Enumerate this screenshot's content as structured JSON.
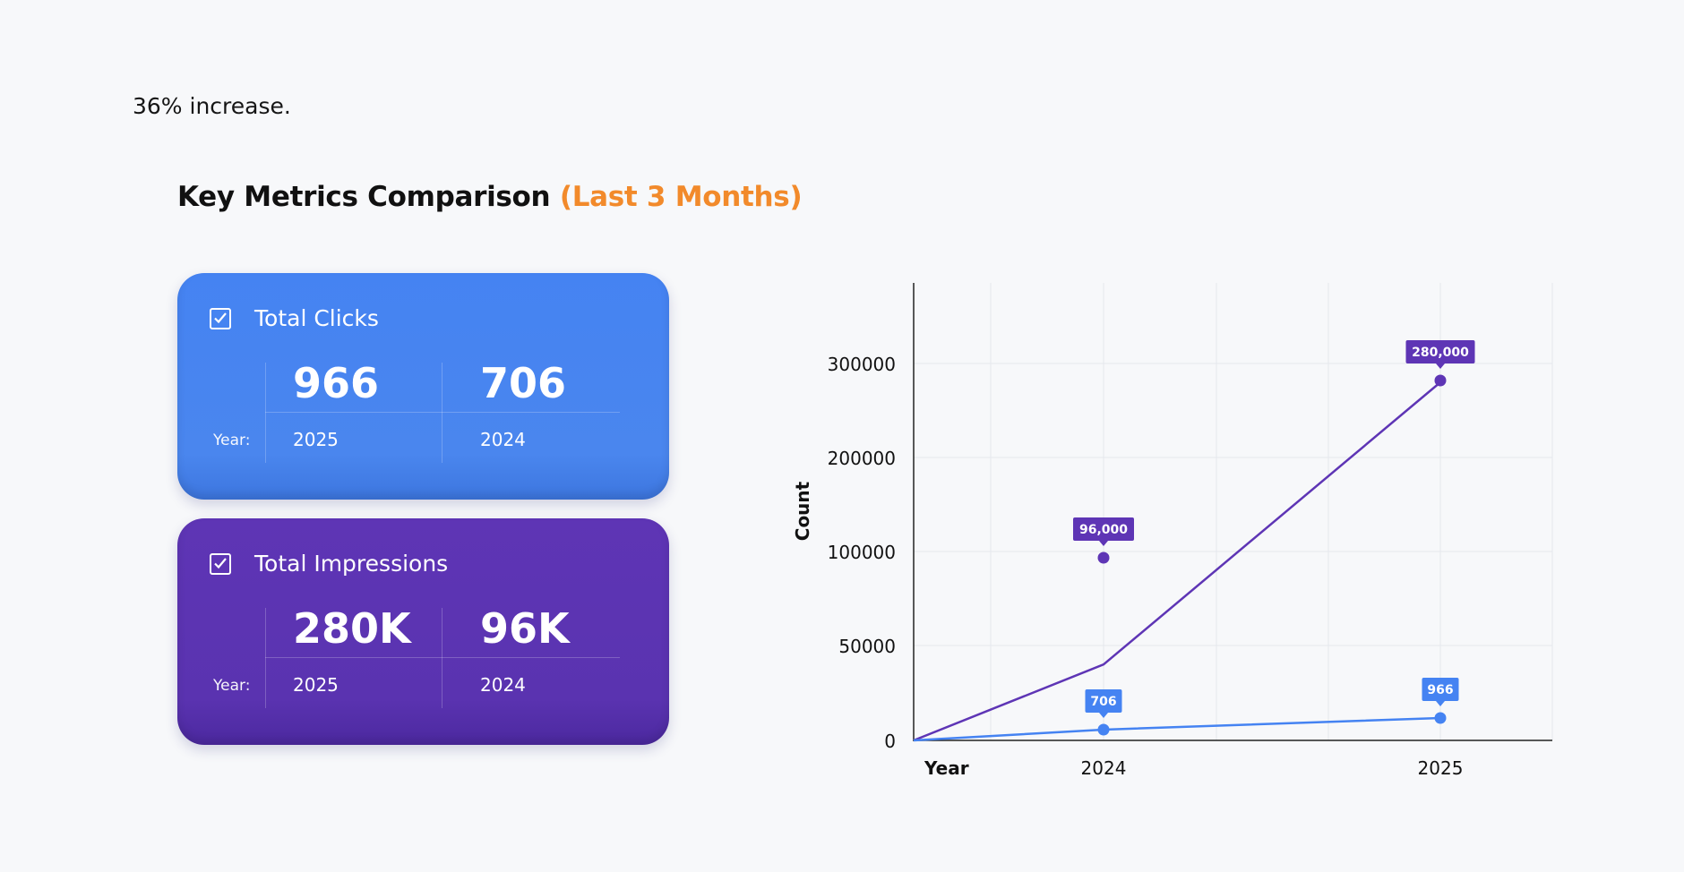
{
  "intro_text": "36% increase.",
  "section": {
    "title": "Key Metrics Comparison",
    "subtitle": "(Last 3 Months)"
  },
  "cards": [
    {
      "label": "Total Clicks",
      "icon": "checkbox-checked-icon",
      "year_label": "Year:",
      "current_value": "966",
      "previous_value": "706",
      "current_year": "2025",
      "previous_year": "2024",
      "color": "#4583f2"
    },
    {
      "label": "Total Impressions",
      "icon": "checkbox-checked-icon",
      "year_label": "Year:",
      "current_value": "280K",
      "previous_value": "96K",
      "current_year": "2025",
      "previous_year": "2024",
      "color": "#5e35b5"
    }
  ],
  "chart_data": {
    "type": "line",
    "ylabel": "Count",
    "xlabel": "Year",
    "x": [
      "2024",
      "2025"
    ],
    "y_ticks": [
      "0",
      "50000",
      "100000",
      "200000",
      "300000"
    ],
    "grid": true,
    "series": [
      {
        "color": "#5e35b5",
        "points": [
          {
            "x": "2024",
            "y": 96000,
            "label": "96,000"
          },
          {
            "x": "2025",
            "y": 280000,
            "label": "280,000"
          }
        ]
      },
      {
        "color": "#4583f2",
        "points": [
          {
            "x": "2024",
            "y": 706,
            "label": "706"
          },
          {
            "x": "2025",
            "y": 966,
            "label": "966"
          }
        ]
      }
    ]
  }
}
